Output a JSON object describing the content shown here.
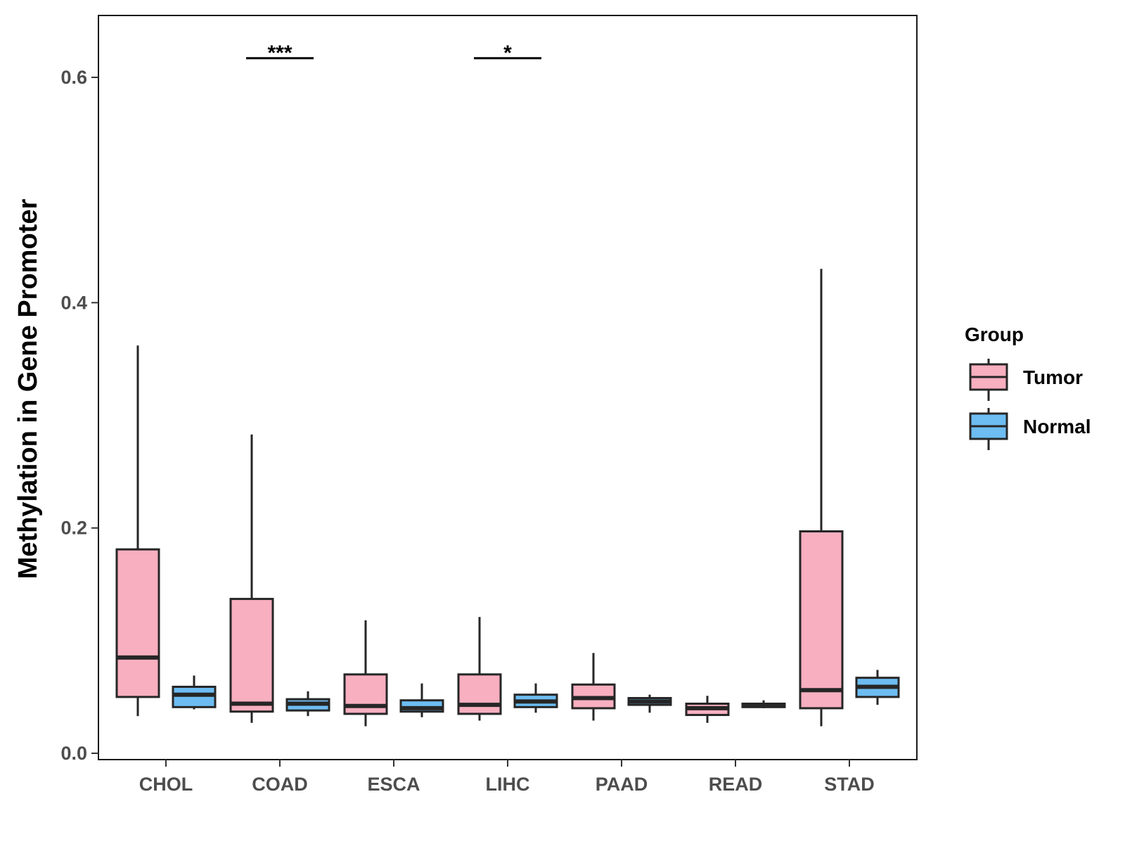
{
  "chart_data": {
    "type": "box",
    "ylabel": "Methylation in Gene Promoter",
    "xlabel": "",
    "ylim": [
      -0.007,
      0.655
    ],
    "yticks": [
      0.0,
      0.2,
      0.4,
      0.6
    ],
    "ytick_labels": [
      "0.0",
      "0.2",
      "0.4",
      "0.6"
    ],
    "categories": [
      "CHOL",
      "COAD",
      "ESCA",
      "LIHC",
      "PAAD",
      "READ",
      "STAD"
    ],
    "legend": {
      "title": "Group",
      "position": "right",
      "entries": [
        {
          "name": "Tumor",
          "color": "#F8AFC0"
        },
        {
          "name": "Normal",
          "color": "#6DBDF2"
        }
      ]
    },
    "series": [
      {
        "name": "Tumor",
        "color": "#F8AFC0",
        "boxes": [
          {
            "whislo": 0.033,
            "q1": 0.05,
            "med": 0.085,
            "q3": 0.181,
            "whishi": 0.362
          },
          {
            "whislo": 0.027,
            "q1": 0.037,
            "med": 0.044,
            "q3": 0.137,
            "whishi": 0.283
          },
          {
            "whislo": 0.024,
            "q1": 0.035,
            "med": 0.042,
            "q3": 0.07,
            "whishi": 0.118
          },
          {
            "whislo": 0.029,
            "q1": 0.035,
            "med": 0.043,
            "q3": 0.07,
            "whishi": 0.121
          },
          {
            "whislo": 0.029,
            "q1": 0.04,
            "med": 0.049,
            "q3": 0.061,
            "whishi": 0.089
          },
          {
            "whislo": 0.027,
            "q1": 0.034,
            "med": 0.04,
            "q3": 0.044,
            "whishi": 0.051
          },
          {
            "whislo": 0.024,
            "q1": 0.04,
            "med": 0.056,
            "q3": 0.197,
            "whishi": 0.43
          }
        ]
      },
      {
        "name": "Normal",
        "color": "#6DBDF2",
        "boxes": [
          {
            "whislo": 0.039,
            "q1": 0.041,
            "med": 0.052,
            "q3": 0.059,
            "whishi": 0.069
          },
          {
            "whislo": 0.033,
            "q1": 0.038,
            "med": 0.044,
            "q3": 0.048,
            "whishi": 0.055
          },
          {
            "whislo": 0.032,
            "q1": 0.037,
            "med": 0.04,
            "q3": 0.047,
            "whishi": 0.062
          },
          {
            "whislo": 0.036,
            "q1": 0.041,
            "med": 0.046,
            "q3": 0.052,
            "whishi": 0.062
          },
          {
            "whislo": 0.036,
            "q1": 0.043,
            "med": 0.046,
            "q3": 0.049,
            "whishi": 0.052
          },
          {
            "whislo": 0.04,
            "q1": 0.041,
            "med": 0.043,
            "q3": 0.044,
            "whishi": 0.047
          },
          {
            "whislo": 0.043,
            "q1": 0.05,
            "med": 0.059,
            "q3": 0.067,
            "whishi": 0.074
          }
        ]
      }
    ],
    "annotations": [
      {
        "category": "COAD",
        "text": "***",
        "y": 0.622
      },
      {
        "category": "LIHC",
        "text": "*",
        "y": 0.622
      }
    ]
  }
}
